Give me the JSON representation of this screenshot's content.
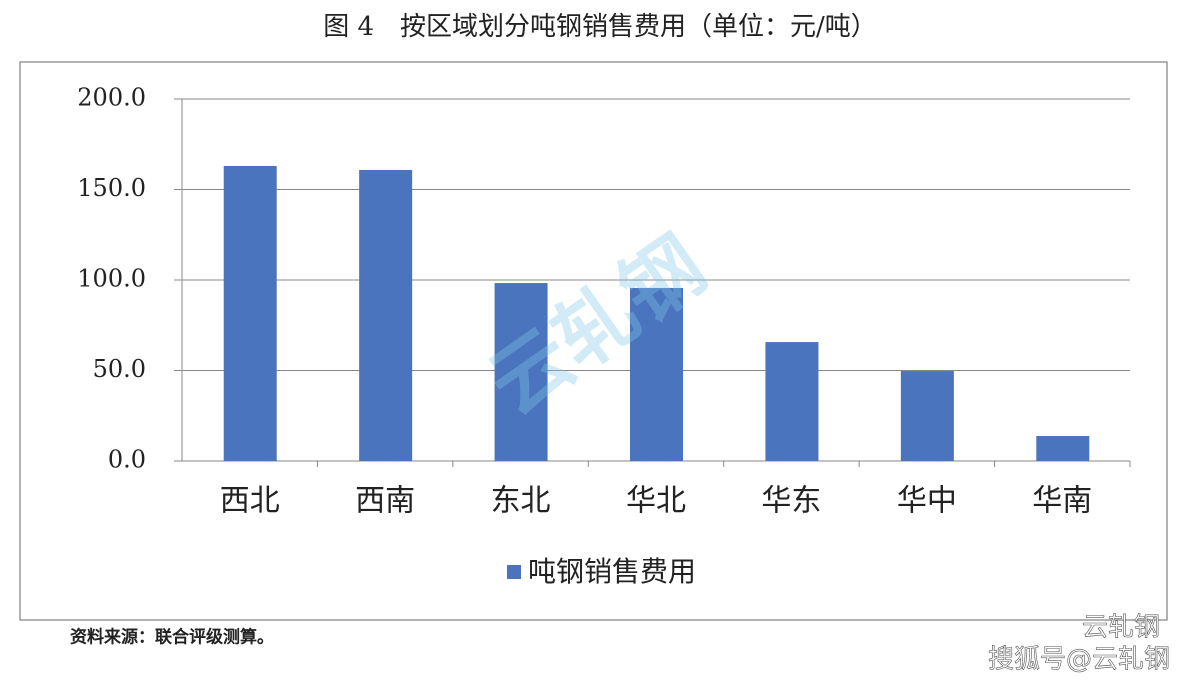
{
  "chart_data": {
    "type": "bar",
    "title": "图 4　按区域划分吨钢销售费用（单位：元/吨）",
    "categories": [
      "西北",
      "西南",
      "东北",
      "华北",
      "华东",
      "华中",
      "华南"
    ],
    "series": [
      {
        "name": "吨钢销售费用",
        "color": "#4a74bd",
        "values": [
          163,
          160.8,
          98.3,
          95.6,
          65.7,
          49.7,
          13.8
        ]
      }
    ],
    "ylim": [
      0,
      200
    ],
    "yticks": [
      {
        "value": 0,
        "label": "0.0"
      },
      {
        "value": 50,
        "label": "50.0"
      },
      {
        "value": 100,
        "label": "100.0"
      },
      {
        "value": 150,
        "label": "150.0"
      },
      {
        "value": 200,
        "label": "200.0"
      }
    ],
    "grid": true,
    "legend": "bottom",
    "source": "资料来源：联合评级测算。",
    "watermarks": [
      "云轧钢",
      "云轧钢",
      "搜狐号@云轧钢"
    ]
  }
}
